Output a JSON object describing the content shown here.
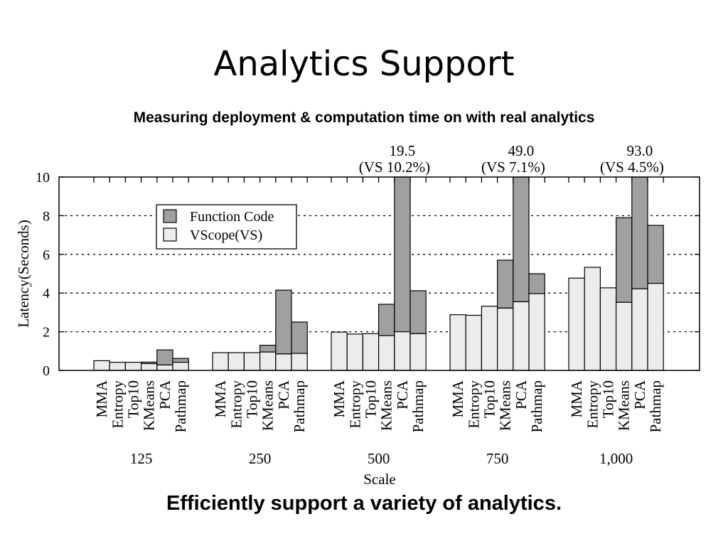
{
  "slide": {
    "title": "Analytics Support",
    "subtitle": "Measuring deployment & computation time on with real analytics",
    "footer": "Efficiently support a variety of analytics."
  },
  "chart_data": {
    "type": "bar",
    "stacked": true,
    "grouped": true,
    "title": "",
    "xlabel": "Scale",
    "ylabel": "Latency(Seconds)",
    "ylim": [
      0,
      10
    ],
    "yticks": [
      "0",
      "2",
      "4",
      "6",
      "8",
      "10"
    ],
    "grid": "horizontal-dotted",
    "legend_position": "top-left",
    "groups": [
      "125",
      "250",
      "500",
      "750",
      "1,000"
    ],
    "categories": [
      "MMA",
      "Entropy",
      "Top10",
      "KMeans",
      "PCA",
      "Pathmap"
    ],
    "series": [
      {
        "name": "VScope(VS)",
        "color": "#ececec",
        "values": [
          [
            0.5,
            0.42,
            0.42,
            0.35,
            0.28,
            0.42
          ],
          [
            0.92,
            0.92,
            0.92,
            0.95,
            0.85,
            0.88
          ],
          [
            1.98,
            1.88,
            1.9,
            1.8,
            2.0,
            1.9
          ],
          [
            2.88,
            2.85,
            3.32,
            3.22,
            3.55,
            3.97
          ],
          [
            4.77,
            5.33,
            4.27,
            3.52,
            4.22,
            4.5
          ]
        ]
      },
      {
        "name": "Function Code",
        "color": "#a0a0a0",
        "values": [
          [
            0,
            0,
            0,
            0.08,
            0.78,
            0.2
          ],
          [
            0,
            0,
            0,
            0.35,
            3.3,
            1.62
          ],
          [
            0,
            0,
            0,
            1.62,
            17.5,
            2.22
          ],
          [
            0,
            0,
            0,
            2.48,
            45.45,
            1.03
          ],
          [
            0,
            0,
            0,
            4.38,
            88.78,
            3.0
          ]
        ]
      }
    ],
    "annotations": [
      {
        "group": "500",
        "category": "PCA",
        "total": "19.5",
        "note": "(VS 10.2%)"
      },
      {
        "group": "750",
        "category": "PCA",
        "total": "49.0",
        "note": "(VS 7.1%)"
      },
      {
        "group": "1,000",
        "category": "PCA",
        "total": "93.0",
        "note": "(VS 4.5%)"
      }
    ]
  }
}
